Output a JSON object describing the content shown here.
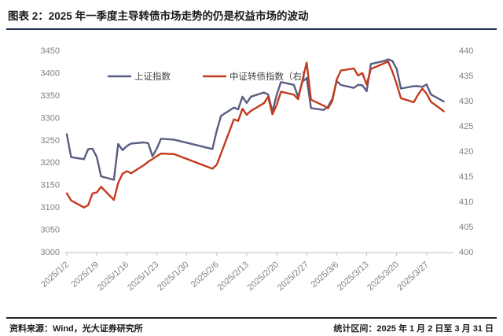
{
  "header": {
    "title": "图表 2：2025 年一季度主导转债市场走势的仍是权益市场的波动"
  },
  "footer": {
    "source": "资料来源：Wind，光大证券研究所",
    "period": "统计区间：2025 年 1 月 2 日至 3 月 31 日"
  },
  "colors": {
    "sse_line": "#585d81",
    "cb_line": "#c43b1e",
    "axis_text": "#808080",
    "axis_line": "#bfbfbf",
    "legend_text": "#404040",
    "title_rule": "#1f3250",
    "footer_rule": "#262626"
  },
  "chart_data": {
    "type": "line",
    "title": "",
    "xlabel": "",
    "ylabel_left": "",
    "ylabel_right": "",
    "grid": false,
    "legend_position": "top-center",
    "left_axis": {
      "min": 3000,
      "max": 3450,
      "step": 50
    },
    "right_axis": {
      "min": 400,
      "max": 440,
      "step": 5
    },
    "x_tick_labels": [
      "2025/1/2",
      "2025/1/9",
      "2025/1/16",
      "2025/1/23",
      "2025/1/30",
      "2025/2/6",
      "2025/2/13",
      "2025/2/20",
      "2025/2/27",
      "2025/3/6",
      "2025/3/13",
      "2025/3/20",
      "2025/3/27"
    ],
    "dates": [
      "2025/1/2",
      "2025/1/3",
      "2025/1/6",
      "2025/1/7",
      "2025/1/8",
      "2025/1/9",
      "2025/1/10",
      "2025/1/13",
      "2025/1/14",
      "2025/1/15",
      "2025/1/16",
      "2025/1/17",
      "2025/1/20",
      "2025/1/21",
      "2025/1/22",
      "2025/1/23",
      "2025/1/24",
      "2025/1/27",
      "2025/2/5",
      "2025/2/6",
      "2025/2/7",
      "2025/2/10",
      "2025/2/11",
      "2025/2/12",
      "2025/2/13",
      "2025/2/14",
      "2025/2/17",
      "2025/2/18",
      "2025/2/19",
      "2025/2/20",
      "2025/2/21",
      "2025/2/24",
      "2025/2/25",
      "2025/2/26",
      "2025/2/27",
      "2025/2/28",
      "2025/3/3",
      "2025/3/4",
      "2025/3/5",
      "2025/3/6",
      "2025/3/7",
      "2025/3/10",
      "2025/3/11",
      "2025/3/12",
      "2025/3/13",
      "2025/3/14",
      "2025/3/17",
      "2025/3/18",
      "2025/3/19",
      "2025/3/20",
      "2025/3/21",
      "2025/3/24",
      "2025/3/25",
      "2025/3/26",
      "2025/3/27",
      "2025/3/28",
      "2025/3/31"
    ],
    "series": [
      {
        "name": "上证指数",
        "axis": "left",
        "color": "#585d81",
        "values": [
          3262.6,
          3211.4,
          3206.9,
          3229.6,
          3230.2,
          3211.4,
          3168.5,
          3160.8,
          3240.9,
          3227.1,
          3236.0,
          3241.8,
          3244.4,
          3242.6,
          3213.6,
          3230.2,
          3252.6,
          3250.6,
          3229.5,
          3270.7,
          3303.7,
          3322.2,
          3318.1,
          3346.4,
          3332.5,
          3346.7,
          3355.8,
          3351.5,
          3313.0,
          3350.8,
          3379.1,
          3373.0,
          3346.0,
          3380.2,
          3388.1,
          3320.9,
          3316.9,
          3324.2,
          3342.0,
          3381.1,
          3372.6,
          3366.2,
          3373.0,
          3371.9,
          3358.7,
          3419.6,
          3426.1,
          3429.8,
          3426.4,
          3408.9,
          3364.8,
          3370.0,
          3370.0,
          3368.7,
          3373.8,
          3351.3,
          3335.8
        ]
      },
      {
        "name": "中证转债指数（右）",
        "axis": "right",
        "color": "#c43b1e",
        "values": [
          411.6,
          410.2,
          408.8,
          409.3,
          411.6,
          411.8,
          412.9,
          410.3,
          413.7,
          415.5,
          416.0,
          415.6,
          417.2,
          417.9,
          418.4,
          419.0,
          419.5,
          419.4,
          416.5,
          417.3,
          419.5,
          426.3,
          426.0,
          428.4,
          427.2,
          428.0,
          429.5,
          430.8,
          427.3,
          429.2,
          431.8,
          431.2,
          430.3,
          434.0,
          437.6,
          430.2,
          429.0,
          428.5,
          430.0,
          434.2,
          436.0,
          436.4,
          435.0,
          435.5,
          433.2,
          436.3,
          437.4,
          437.8,
          435.8,
          433.3,
          430.5,
          429.7,
          431.2,
          432.4,
          431.4,
          429.8,
          427.9
        ]
      }
    ]
  }
}
